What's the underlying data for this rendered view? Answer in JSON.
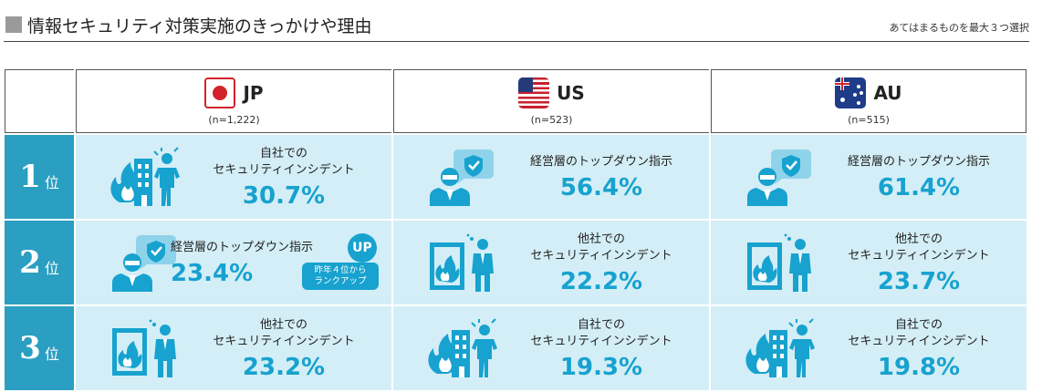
{
  "header": {
    "title": "情報セキュリティ対策実施のきっかけや理由",
    "note": "あてはまるものを最大３つ選択"
  },
  "colors": {
    "accent": "#17a2cf",
    "rank_bg": "#2a9fc2",
    "cell_bg": "#d3eef6",
    "jp_red": "#d2232a"
  },
  "countries": [
    {
      "code": "JP",
      "n": "(n=1,222)",
      "flag": "jp-flag-icon"
    },
    {
      "code": "US",
      "n": "(n=523)",
      "flag": "us-flag-icon"
    },
    {
      "code": "AU",
      "n": "(n=515)",
      "flag": "au-flag-icon"
    }
  ],
  "ranks": [
    {
      "num": "1",
      "unit": "位"
    },
    {
      "num": "2",
      "unit": "位"
    },
    {
      "num": "3",
      "unit": "位"
    }
  ],
  "cells": [
    [
      {
        "label": "自社での\nセキュリティインシデント",
        "value": "30.7%",
        "icon": "own-incident-icon"
      },
      {
        "label": "経営層のトップダウン指示",
        "value": "56.4%",
        "icon": "top-down-icon"
      },
      {
        "label": "経営層のトップダウン指示",
        "value": "61.4%",
        "icon": "top-down-icon"
      }
    ],
    [
      {
        "label": "経営層のトップダウン指示",
        "value": "23.4%",
        "icon": "top-down-icon",
        "badge": "UP",
        "badge_note": "昨年４位から\nランクアップ"
      },
      {
        "label": "他社での\nセキュリティインシデント",
        "value": "22.2%",
        "icon": "other-incident-icon"
      },
      {
        "label": "他社での\nセキュリティインシデント",
        "value": "23.7%",
        "icon": "other-incident-icon"
      }
    ],
    [
      {
        "label": "他社での\nセキュリティインシデント",
        "value": "23.2%",
        "icon": "other-incident-icon"
      },
      {
        "label": "自社での\nセキュリティインシデント",
        "value": "19.3%",
        "icon": "own-incident-icon"
      },
      {
        "label": "自社での\nセキュリティインシデント",
        "value": "19.8%",
        "icon": "own-incident-icon"
      }
    ]
  ],
  "chart_data": {
    "type": "table",
    "columns": [
      "JP",
      "US",
      "AU"
    ],
    "sample_sizes": [
      "(n=1,222)",
      "(n=523)",
      "(n=515)"
    ],
    "rows": [
      {
        "rank": "1位",
        "JP": {
          "item": "自社でのセキュリティインシデント",
          "value": 30.7
        },
        "US": {
          "item": "経営層のトップダウン指示",
          "value": 56.4
        },
        "AU": {
          "item": "経営層のトップダウン指示",
          "value": 61.4
        }
      },
      {
        "rank": "2位",
        "JP": {
          "item": "経営層のトップダウン指示",
          "value": 23.4
        },
        "US": {
          "item": "他社でのセキュリティインシデント",
          "value": 22.2
        },
        "AU": {
          "item": "他社でのセキュリティインシデント",
          "value": 23.7
        }
      },
      {
        "rank": "3位",
        "JP": {
          "item": "他社でのセキュリティインシデント",
          "value": 23.2
        },
        "US": {
          "item": "自社でのセキュリティインシデント",
          "value": 19.3
        },
        "AU": {
          "item": "自社でのセキュリティインシデント",
          "value": 19.8
        }
      }
    ]
  }
}
